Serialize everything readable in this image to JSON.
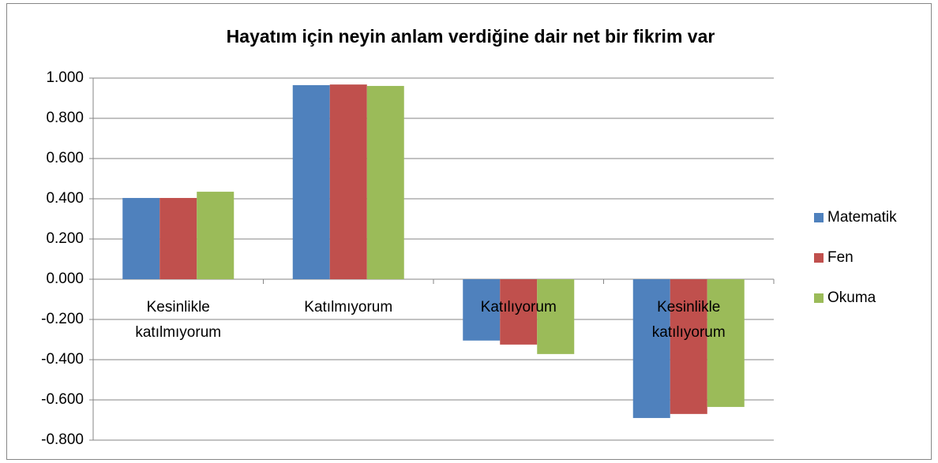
{
  "chart_data": {
    "type": "bar",
    "title": "Hayatım için neyin anlam verdiğine dair net bir fikrim var",
    "categories": [
      "Kesinlikle katılmıyorum",
      "Katılmıyorum",
      "Katılıyorum",
      "Kesinlikle katılıyorum"
    ],
    "series": [
      {
        "name": "Matematik",
        "color": "#4f81bd",
        "values": [
          0.404,
          0.965,
          -0.305,
          -0.69
        ]
      },
      {
        "name": "Fen",
        "color": "#c0504d",
        "values": [
          0.404,
          0.968,
          -0.325,
          -0.67
        ]
      },
      {
        "name": "Okuma",
        "color": "#9bbb59",
        "values": [
          0.435,
          0.961,
          -0.372,
          -0.635
        ]
      }
    ],
    "ylim": [
      -0.8,
      1.0
    ],
    "yticks": [
      {
        "value": -0.8,
        "label": "-0.800"
      },
      {
        "value": -0.6,
        "label": "-0.600"
      },
      {
        "value": -0.4,
        "label": "-0.400"
      },
      {
        "value": -0.2,
        "label": "-0.200"
      },
      {
        "value": 0,
        "label": "0.000"
      },
      {
        "value": 0.2,
        "label": "0.200"
      },
      {
        "value": 0.4,
        "label": "0.400"
      },
      {
        "value": 0.6,
        "label": "0.600"
      },
      {
        "value": 0.8,
        "label": "0.800"
      },
      {
        "value": 1.0,
        "label": "1.000"
      }
    ],
    "grid": true,
    "legend": "right"
  }
}
